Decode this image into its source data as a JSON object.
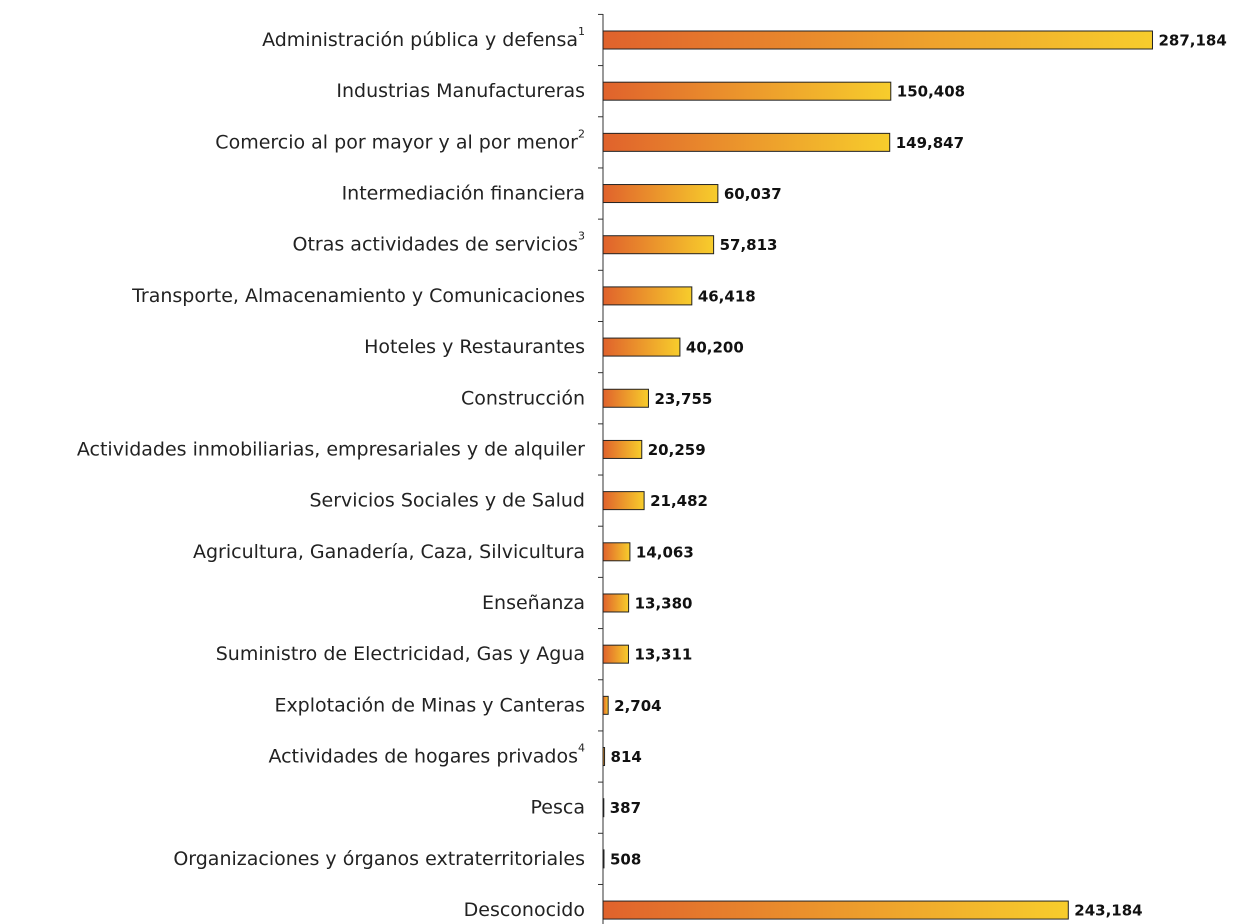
{
  "chart_data": {
    "type": "hbar",
    "categories": [
      "Administración pública y defensa",
      "Industrias Manufactureras",
      "Comercio al por mayor y al por menor",
      "Intermediación financiera",
      "Otras actividades de servicios",
      "Transporte, Almacenamiento y Comunicaciones",
      "Hoteles y Restaurantes",
      "Construcción",
      "Actividades inmobiliarias, empresariales y de alquiler",
      "Servicios Sociales y de Salud",
      "Agricultura, Ganadería, Caza, Silvicultura",
      "Enseñanza",
      "Suministro de Electricidad, Gas y Agua",
      "Explotación de Minas y Canteras",
      "Actividades de hogares privados",
      "Pesca",
      "Organizaciones y órganos extraterritoriales",
      "Desconocido"
    ],
    "category_footnotes": [
      "1",
      null,
      "2",
      null,
      "3",
      null,
      null,
      null,
      null,
      null,
      null,
      null,
      null,
      null,
      "4",
      null,
      null,
      null
    ],
    "values": [
      287184,
      150408,
      149847,
      60037,
      57813,
      46418,
      40200,
      23755,
      20259,
      21482,
      14063,
      13380,
      13311,
      2704,
      814,
      387,
      508,
      243184
    ],
    "value_labels": [
      "287,184",
      "150,408",
      "149,847",
      "60,037",
      "57,813",
      "46,418",
      "40,200",
      "23,755",
      "20,259",
      "21,482",
      "14,063",
      "13,380",
      "13,311",
      "2,704",
      "814",
      "387",
      "508",
      "243,184"
    ],
    "color_start": "#e0622c",
    "color_end": "#f7cd2c",
    "xlim": [
      0,
      300000
    ]
  }
}
